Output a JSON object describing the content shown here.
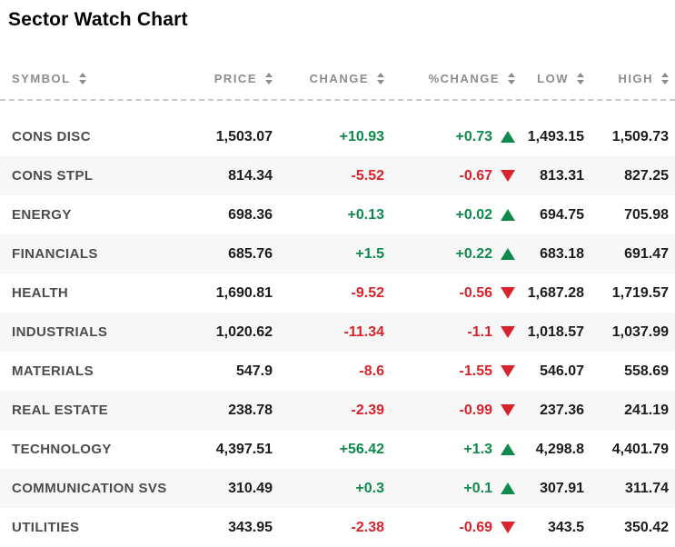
{
  "title": "Sector Watch Chart",
  "icons": {
    "sort_asc": "triangle-up",
    "sort_desc": "triangle-down",
    "up_triangle": "triangle-up",
    "down_triangle": "triangle-down"
  },
  "colors": {
    "positive": "#0e8a4c",
    "negative": "#d7232b",
    "header_text": "#8c8c8c",
    "symbol_text": "#4c4c4c",
    "value_text": "#1c1c1c",
    "row_alt_bg": "#f7f7f7",
    "divider": "#c9c9c9"
  },
  "chart_data": {
    "type": "table",
    "title": "Sector Watch Chart",
    "columns": [
      "SYMBOL",
      "PRICE",
      "CHANGE",
      "%CHANGE",
      "LOW",
      "HIGH"
    ],
    "rows": [
      {
        "symbol": "CONS DISC",
        "price": "1,503.07",
        "change": "+10.93",
        "pct_change": "+0.73",
        "direction": "up",
        "low": "1,493.15",
        "high": "1,509.73"
      },
      {
        "symbol": "CONS STPL",
        "price": "814.34",
        "change": "-5.52",
        "pct_change": "-0.67",
        "direction": "down",
        "low": "813.31",
        "high": "827.25"
      },
      {
        "symbol": "ENERGY",
        "price": "698.36",
        "change": "+0.13",
        "pct_change": "+0.02",
        "direction": "up",
        "low": "694.75",
        "high": "705.98"
      },
      {
        "symbol": "FINANCIALS",
        "price": "685.76",
        "change": "+1.5",
        "pct_change": "+0.22",
        "direction": "up",
        "low": "683.18",
        "high": "691.47"
      },
      {
        "symbol": "HEALTH",
        "price": "1,690.81",
        "change": "-9.52",
        "pct_change": "-0.56",
        "direction": "down",
        "low": "1,687.28",
        "high": "1,719.57"
      },
      {
        "symbol": "INDUSTRIALS",
        "price": "1,020.62",
        "change": "-11.34",
        "pct_change": "-1.1",
        "direction": "down",
        "low": "1,018.57",
        "high": "1,037.99"
      },
      {
        "symbol": "MATERIALS",
        "price": "547.9",
        "change": "-8.6",
        "pct_change": "-1.55",
        "direction": "down",
        "low": "546.07",
        "high": "558.69"
      },
      {
        "symbol": "REAL ESTATE",
        "price": "238.78",
        "change": "-2.39",
        "pct_change": "-0.99",
        "direction": "down",
        "low": "237.36",
        "high": "241.19"
      },
      {
        "symbol": "TECHNOLOGY",
        "price": "4,397.51",
        "change": "+56.42",
        "pct_change": "+1.3",
        "direction": "up",
        "low": "4,298.8",
        "high": "4,401.79"
      },
      {
        "symbol": "COMMUNICATION SVS",
        "price": "310.49",
        "change": "+0.3",
        "pct_change": "+0.1",
        "direction": "up",
        "low": "307.91",
        "high": "311.74"
      },
      {
        "symbol": "UTILITIES",
        "price": "343.95",
        "change": "-2.38",
        "pct_change": "-0.69",
        "direction": "down",
        "low": "343.5",
        "high": "350.42"
      }
    ]
  }
}
